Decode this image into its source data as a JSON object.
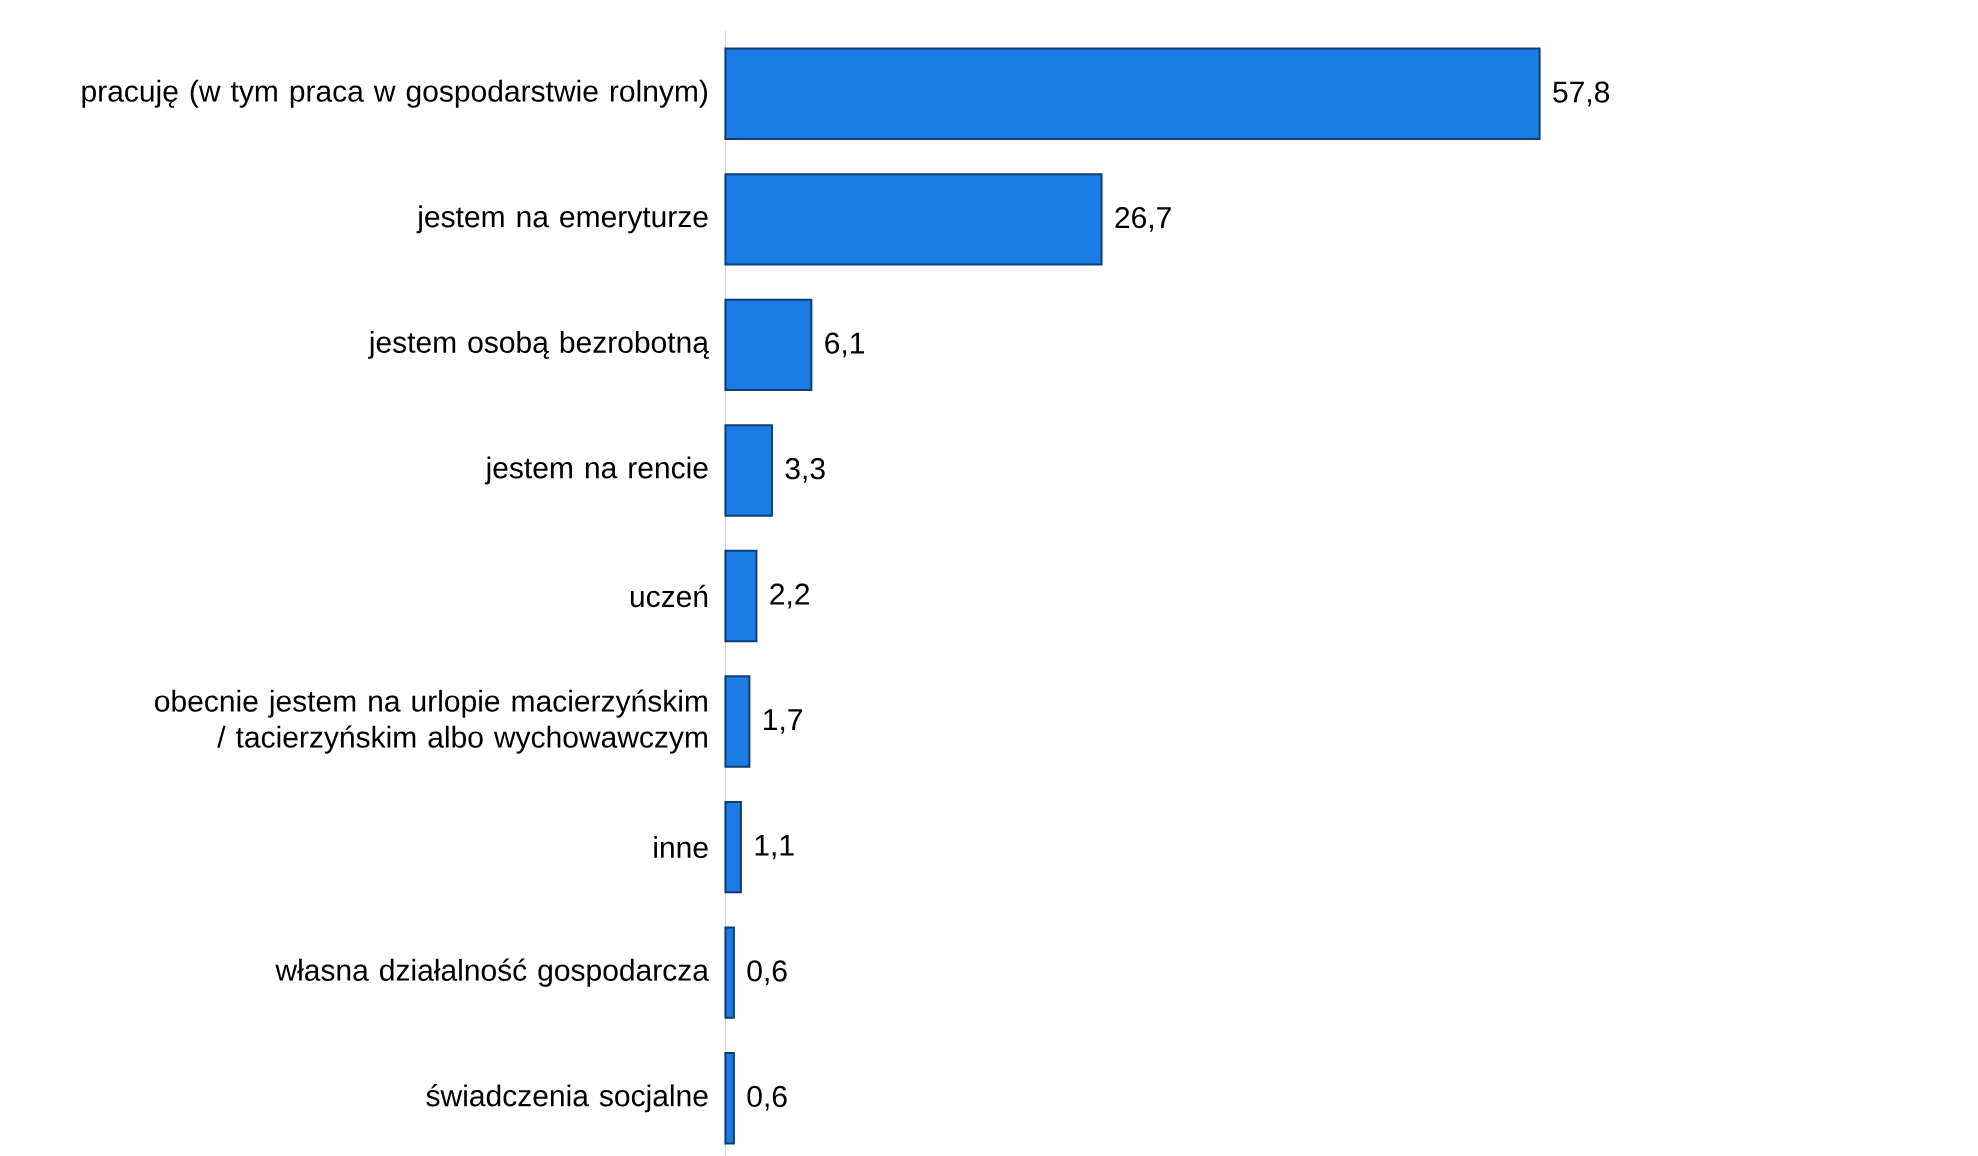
{
  "chart_data": {
    "type": "bar",
    "orientation": "horizontal",
    "categories": [
      "pracuję (w tym praca w gospodarstwie rolnym)",
      "jestem na emeryturze",
      "jestem osobą bezrobotną",
      "jestem na rencie",
      "uczeń",
      "obecnie jestem na urlopie macierzyńskim / tacierzyńskim albo wychowawczym",
      "inne",
      "własna działalność gospodarcza",
      "świadczenia socjalne"
    ],
    "values": [
      57.8,
      26.7,
      6.1,
      3.3,
      2.2,
      1.7,
      1.1,
      0.6,
      0.6
    ],
    "value_labels": [
      "57,8",
      "26,7",
      "6,1",
      "3,3",
      "2,2",
      "1,7",
      "1,1",
      "0,6",
      "0,6"
    ],
    "color": "#1c7ce6",
    "tick_labels": "y"
  }
}
